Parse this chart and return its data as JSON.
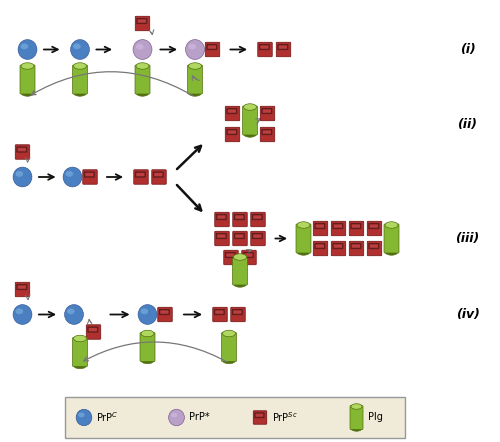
{
  "fig_width": 5.0,
  "fig_height": 4.42,
  "dpi": 100,
  "bg_color": "#ffffff",
  "blue_ball_color": "#4a7fc1",
  "blue_ball_highlight": "#7ab0e0",
  "purple_ball_color": "#b8a0c8",
  "purple_ball_highlight": "#d4c0e4",
  "red_sq_color": "#b03030",
  "red_sq_highlight": "#cc5050",
  "green_cyl_color": "#85b832",
  "green_cyl_highlight": "#b0d860",
  "green_cyl_dark": "#527010",
  "legend_bg": "#f0ead8",
  "legend_border": "#999999",
  "arrow_color": "#111111",
  "curve_arrow_color": "#777777",
  "label_i": "(i)",
  "label_ii": "(ii)",
  "label_iii": "(iii)",
  "label_iv": "(iv)",
  "font_size_label": 9,
  "font_size_legend": 7,
  "xlim": [
    0,
    10
  ],
  "ylim": [
    0,
    8.84
  ]
}
